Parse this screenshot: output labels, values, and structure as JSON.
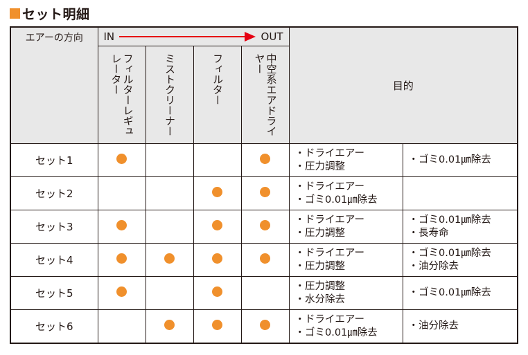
{
  "title": "セット明細",
  "colors": {
    "accent": "#f0902c",
    "arrow": "#e60012",
    "header_bg": "#e8e8e8"
  },
  "header": {
    "direction_label": "エアーの方向",
    "in_label": "IN",
    "out_label": "OUT",
    "purpose_label": "目的",
    "equipment": [
      "フィルターレギュレーター",
      "ミストクリーナー",
      "フィルター",
      "エアドライヤー"
    ],
    "equipment_prefix_4": "中空系"
  },
  "rows": [
    {
      "name": "セット1",
      "marks": [
        true,
        false,
        false,
        true
      ],
      "purpose1": [
        "・ドライエアー",
        "・圧力調整"
      ],
      "purpose2": [
        "・ゴミ0.01㎛除去"
      ]
    },
    {
      "name": "セット2",
      "marks": [
        false,
        false,
        true,
        true
      ],
      "purpose1": [
        "・ドライエアー",
        "・ゴミ0.01㎛除去"
      ],
      "purpose2": []
    },
    {
      "name": "セット3",
      "marks": [
        true,
        false,
        true,
        true
      ],
      "purpose1": [
        "・ドライエアー",
        "・圧力調整"
      ],
      "purpose2": [
        "・ゴミ0.01㎛除去",
        "・長寿命"
      ]
    },
    {
      "name": "セット4",
      "marks": [
        true,
        true,
        true,
        true
      ],
      "purpose1": [
        "・ドライエアー",
        "・圧力調整"
      ],
      "purpose2": [
        "・ゴミ0.01㎛除去",
        "・油分除去"
      ]
    },
    {
      "name": "セット5",
      "marks": [
        true,
        false,
        true,
        false
      ],
      "purpose1": [
        "・圧力調整",
        "・水分除去"
      ],
      "purpose2": [
        "・ゴミ0.01㎛除去"
      ]
    },
    {
      "name": "セット6",
      "marks": [
        false,
        true,
        true,
        true
      ],
      "purpose1": [
        "・ドライエアー",
        "・ゴミ0.01㎛除去"
      ],
      "purpose2": [
        "・油分除去"
      ]
    }
  ]
}
